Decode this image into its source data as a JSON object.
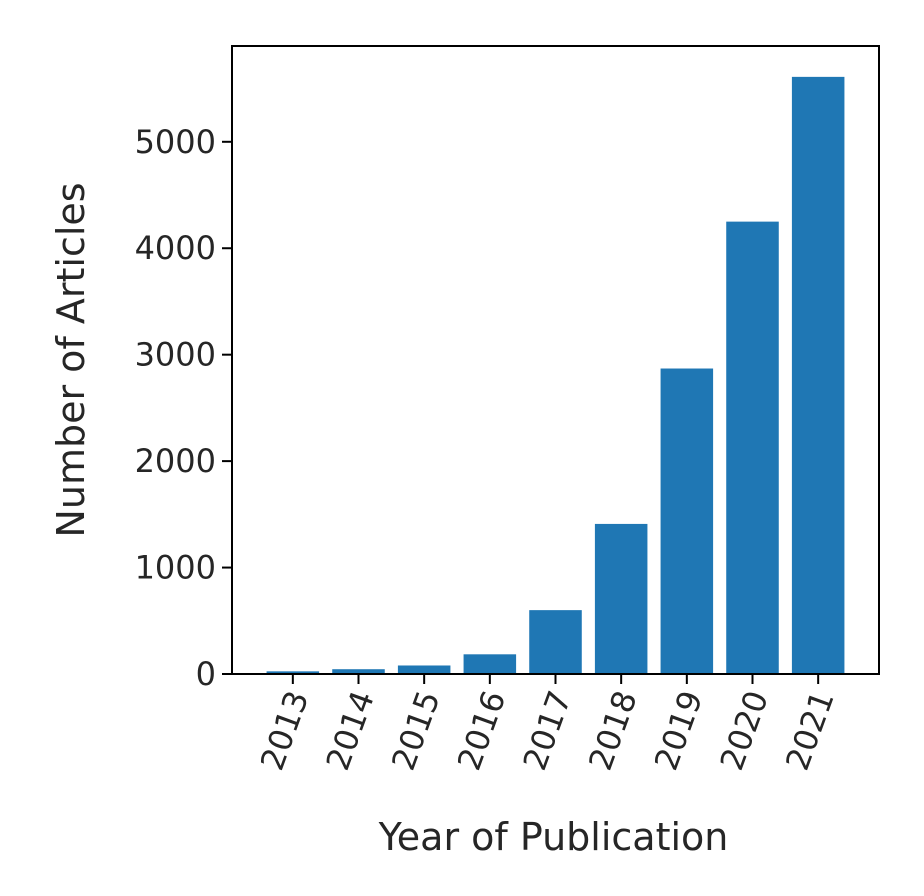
{
  "chart_data": {
    "type": "bar",
    "title": "",
    "xlabel": "Year of Publication",
    "ylabel": "Number of Articles",
    "categories": [
      "2013",
      "2014",
      "2015",
      "2016",
      "2017",
      "2018",
      "2019",
      "2020",
      "2021"
    ],
    "values": [
      25,
      45,
      80,
      185,
      600,
      1410,
      2870,
      4250,
      5610
    ],
    "ylim": [
      0,
      5900
    ],
    "yticks": [
      0,
      1000,
      2000,
      3000,
      4000,
      5000
    ],
    "ytick_labels": [
      "0",
      "1000",
      "2000",
      "3000",
      "4000",
      "5000"
    ],
    "grid": false,
    "legend": "none",
    "bar_color": "#1f77b4",
    "x_tick_rotation": "70deg"
  }
}
